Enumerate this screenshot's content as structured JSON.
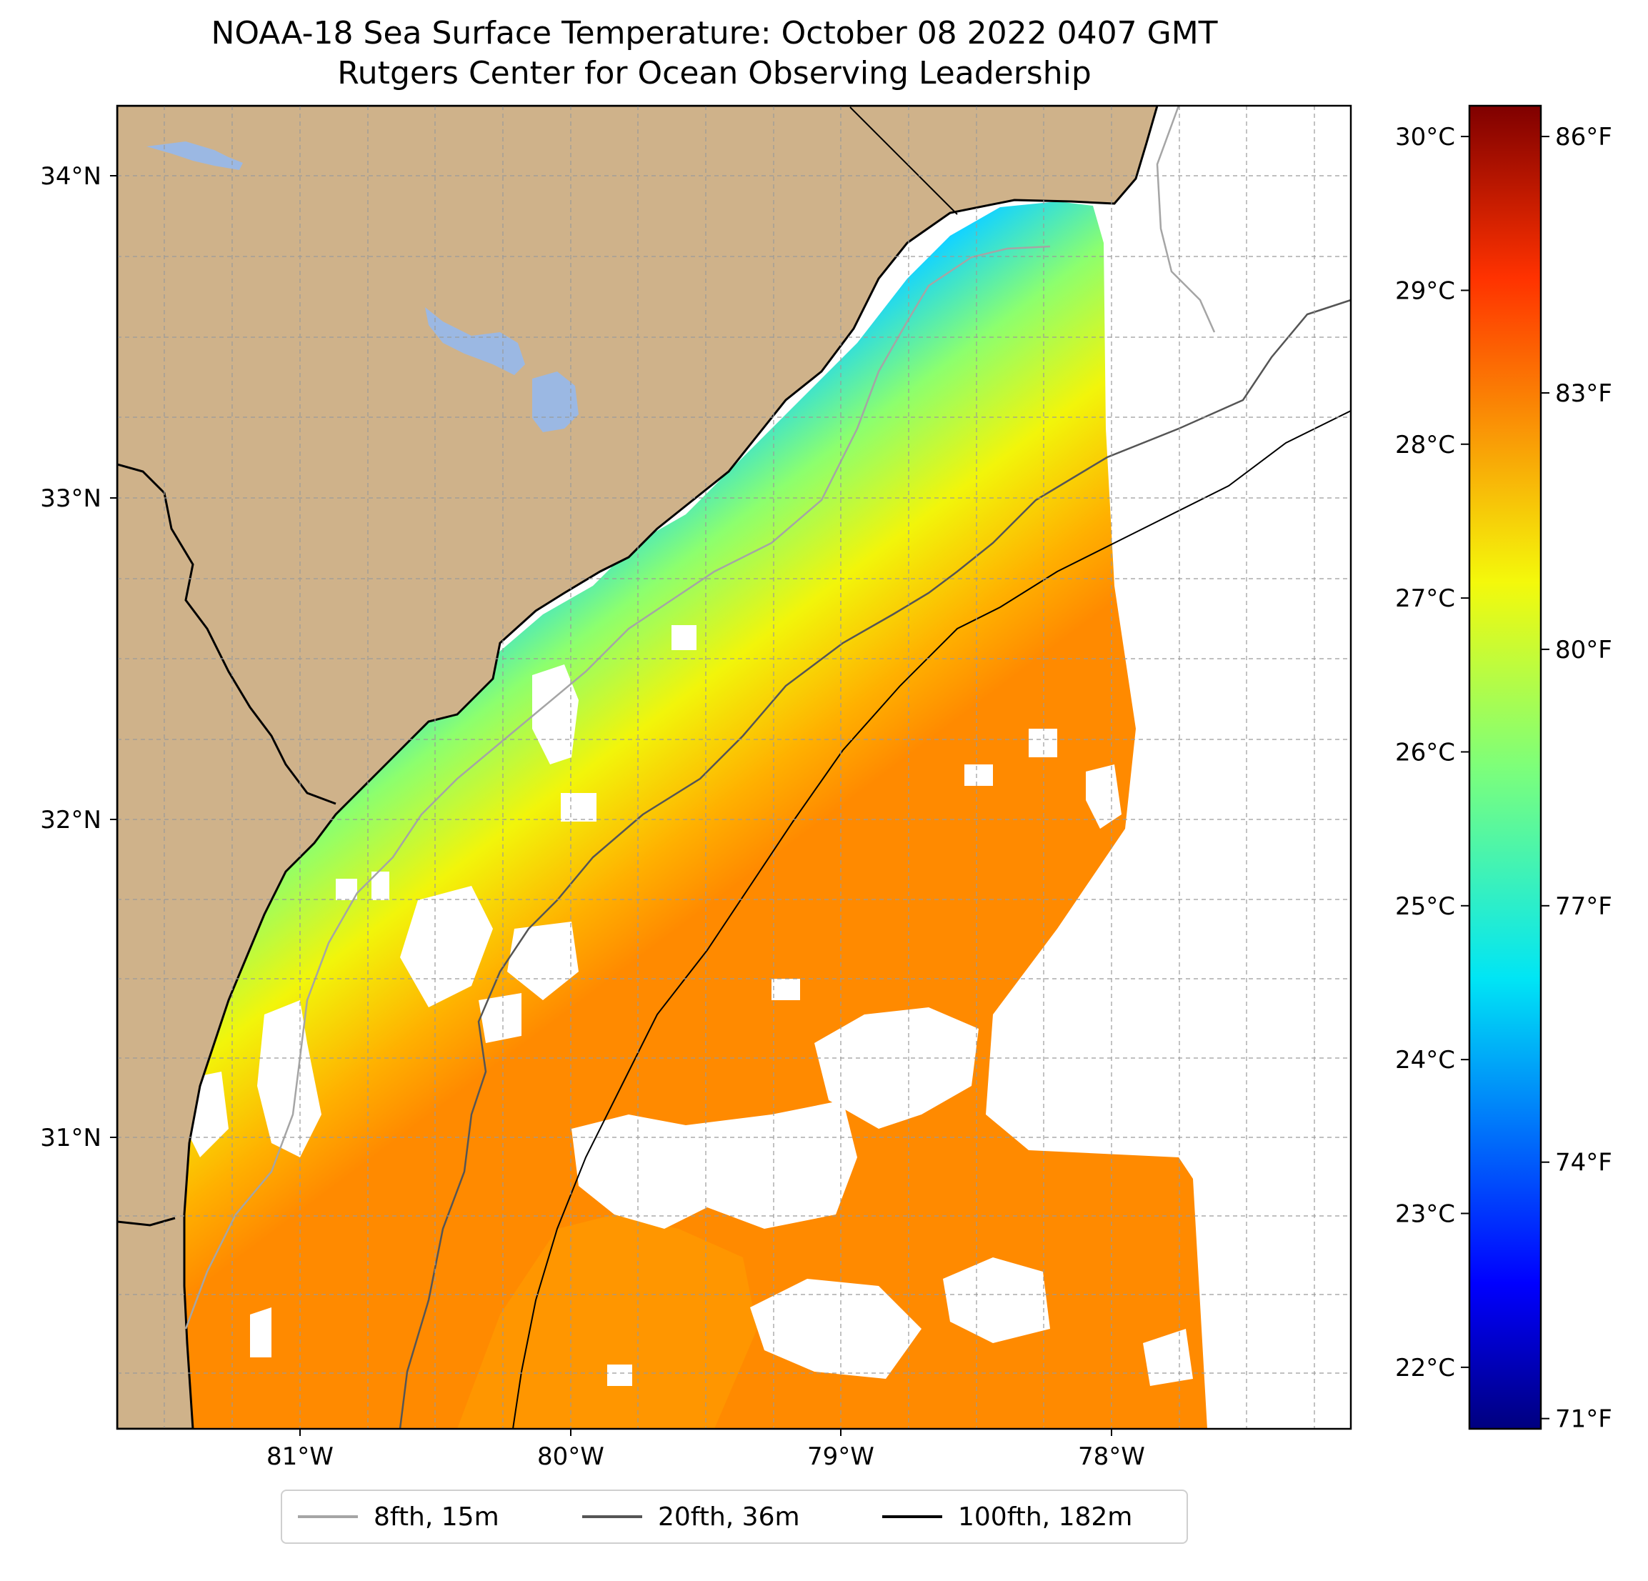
{
  "title": {
    "line1": "NOAA-18 Sea Surface Temperature: October 08 2022 0407 GMT",
    "line2": "Rutgers Center for Ocean Observing Leadership"
  },
  "map": {
    "lat_ticks": [
      {
        "value": 34,
        "label": "34°N"
      },
      {
        "value": 33,
        "label": "33°N"
      },
      {
        "value": 32,
        "label": "32°N"
      },
      {
        "value": 31,
        "label": "31°N"
      }
    ],
    "lon_ticks": [
      {
        "value": -81,
        "label": "81°W"
      },
      {
        "value": -80,
        "label": "80°W"
      },
      {
        "value": -79,
        "label": "79°W"
      },
      {
        "value": -78,
        "label": "78°W"
      }
    ],
    "lon_range": [
      -81.68,
      -77.12
    ],
    "lat_range": [
      30.1,
      34.22
    ],
    "grid": true,
    "land_color": "#cfb28a",
    "water_body_color": "#9bb8e3"
  },
  "colorbar": {
    "celsius_ticks": [
      "30°C",
      "29°C",
      "28°C",
      "27°C",
      "26°C",
      "25°C",
      "24°C",
      "23°C",
      "22°C"
    ],
    "celsius_values": [
      30,
      29,
      28,
      27,
      26,
      25,
      24,
      23,
      22
    ],
    "fahrenheit_ticks": [
      "86°F",
      "83°F",
      "80°F",
      "77°F",
      "74°F",
      "71°F"
    ],
    "fahrenheit_values": [
      86,
      83,
      80,
      77,
      74,
      71
    ],
    "range_c": [
      21.6,
      30.2
    ],
    "colormap": "jet"
  },
  "legend": {
    "items": [
      {
        "label": "8fth, 15m",
        "color": "#a5a5a5"
      },
      {
        "label": "20fth, 36m",
        "color": "#555555"
      },
      {
        "label": "100fth, 182m",
        "color": "#000000"
      }
    ]
  }
}
